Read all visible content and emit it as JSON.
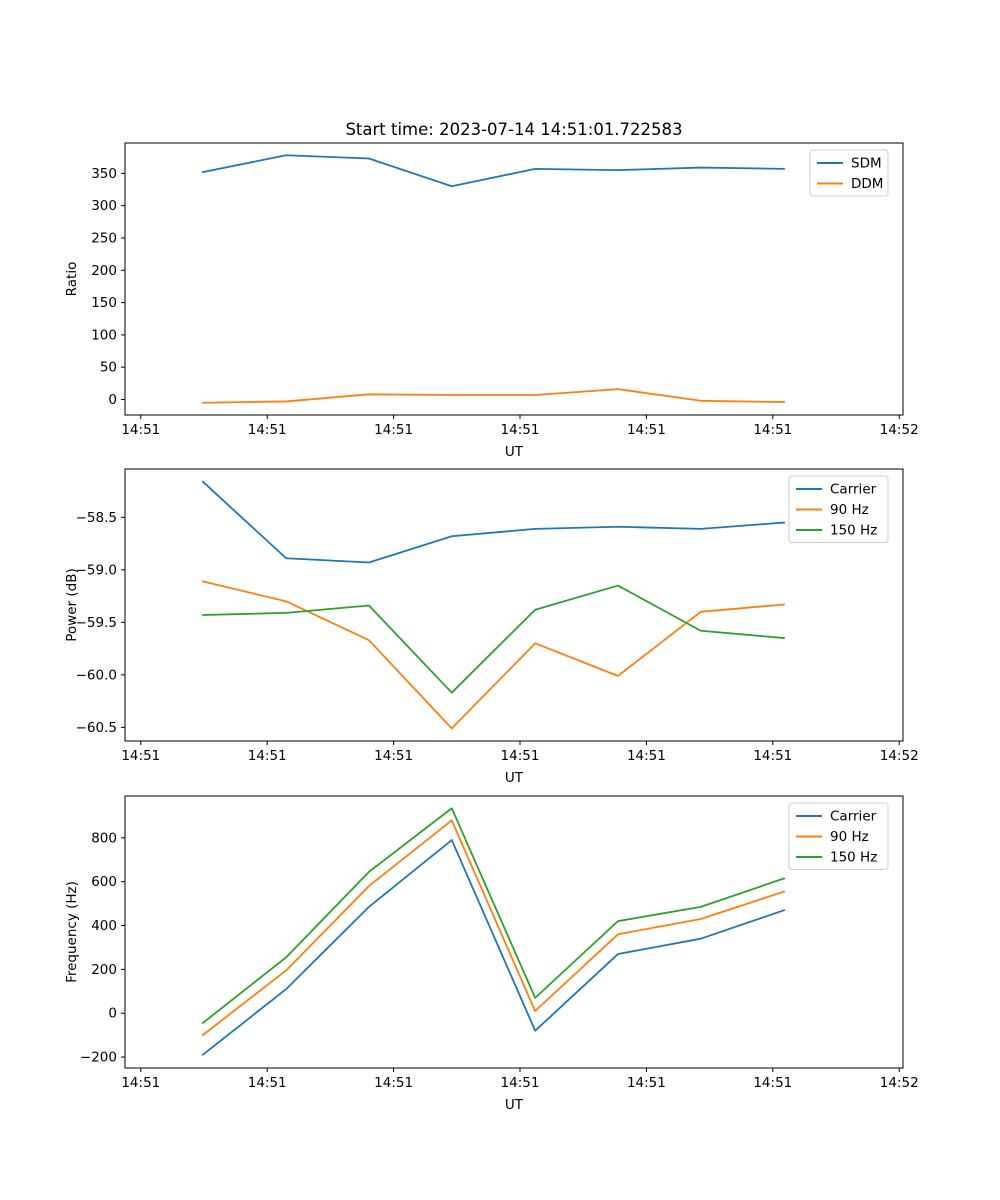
{
  "figure": {
    "background": "#ffffff",
    "text_color": "#000000",
    "spine_color": "#000000",
    "legend_border_color": "#cccccc"
  },
  "chart_data": [
    {
      "type": "line",
      "title": "Start time: 2023-07-14 14:51:01.722583",
      "xlabel": "UT",
      "ylabel": "Ratio",
      "x": [
        4.9,
        11.5,
        18.05,
        24.6,
        31.2,
        37.75,
        44.3,
        50.9
      ],
      "series": [
        {
          "name": "SDM",
          "color": "#1f77b4",
          "values": [
            352,
            378,
            373,
            330,
            357,
            355,
            359,
            357
          ]
        },
        {
          "name": "DDM",
          "color": "#ff7f0e",
          "values": [
            -5,
            -3,
            8,
            7,
            7,
            16,
            -2,
            -4
          ]
        }
      ],
      "xlim": [
        -1.25,
        60.3
      ],
      "ylim": [
        -24,
        397
      ],
      "yticks": [
        0,
        50,
        100,
        150,
        200,
        250,
        300,
        350
      ],
      "yticklabels": [
        "0",
        "50",
        "100",
        "150",
        "200",
        "250",
        "300",
        "350"
      ],
      "xticks": [
        0,
        10,
        20,
        30,
        40,
        50,
        60
      ],
      "xticklabels": [
        "14:51",
        "14:51",
        "14:51",
        "14:51",
        "14:51",
        "14:51",
        "14:52"
      ],
      "legend": {
        "position": "upper right",
        "entries": [
          "SDM",
          "DDM"
        ]
      },
      "grid": false
    },
    {
      "type": "line",
      "title": "",
      "xlabel": "UT",
      "ylabel": "Power (dB)",
      "x": [
        4.9,
        11.5,
        18.05,
        24.6,
        31.2,
        37.75,
        44.3,
        50.9
      ],
      "series": [
        {
          "name": "Carrier",
          "color": "#1f77b4",
          "values": [
            -58.16,
            -58.89,
            -58.93,
            -58.68,
            -58.61,
            -58.59,
            -58.61,
            -58.55
          ]
        },
        {
          "name": "90 Hz",
          "color": "#ff7f0e",
          "values": [
            -59.11,
            -59.3,
            -59.67,
            -60.51,
            -59.7,
            -60.01,
            -59.4,
            -59.33
          ]
        },
        {
          "name": "150 Hz",
          "color": "#2ca02c",
          "values": [
            -59.43,
            -59.41,
            -59.34,
            -60.17,
            -59.38,
            -59.15,
            -59.58,
            -59.65
          ]
        }
      ],
      "xlim": [
        -1.25,
        60.3
      ],
      "ylim": [
        -60.63,
        -58.04
      ],
      "yticks": [
        -60.5,
        -60.0,
        -59.5,
        -59.0,
        -58.5
      ],
      "yticklabels": [
        "−60.5",
        "−60.0",
        "−59.5",
        "−59.0",
        "−58.5"
      ],
      "xticks": [
        0,
        10,
        20,
        30,
        40,
        50,
        60
      ],
      "xticklabels": [
        "14:51",
        "14:51",
        "14:51",
        "14:51",
        "14:51",
        "14:51",
        "14:52"
      ],
      "legend": {
        "position": "upper right",
        "entries": [
          "Carrier",
          "90 Hz",
          "150 Hz"
        ]
      },
      "grid": false
    },
    {
      "type": "line",
      "title": "",
      "xlabel": "UT",
      "ylabel": "Frequency (Hz)",
      "x": [
        4.9,
        11.5,
        18.05,
        24.6,
        31.2,
        37.75,
        44.3,
        50.9
      ],
      "series": [
        {
          "name": "Carrier",
          "color": "#1f77b4",
          "values": [
            -190,
            110,
            485,
            790,
            -80,
            270,
            340,
            470
          ]
        },
        {
          "name": "90 Hz",
          "color": "#ff7f0e",
          "values": [
            -100,
            195,
            580,
            880,
            10,
            360,
            430,
            555
          ]
        },
        {
          "name": "150 Hz",
          "color": "#2ca02c",
          "values": [
            -45,
            255,
            645,
            935,
            70,
            420,
            485,
            615
          ]
        }
      ],
      "xlim": [
        -1.25,
        60.3
      ],
      "ylim": [
        -250,
        991
      ],
      "yticks": [
        -200,
        0,
        200,
        400,
        600,
        800
      ],
      "yticklabels": [
        "−200",
        "0",
        "200",
        "400",
        "600",
        "800"
      ],
      "xticks": [
        0,
        10,
        20,
        30,
        40,
        50,
        60
      ],
      "xticklabels": [
        "14:51",
        "14:51",
        "14:51",
        "14:51",
        "14:51",
        "14:51",
        "14:52"
      ],
      "legend": {
        "position": "upper right",
        "entries": [
          "Carrier",
          "90 Hz",
          "150 Hz"
        ]
      },
      "grid": false
    }
  ]
}
